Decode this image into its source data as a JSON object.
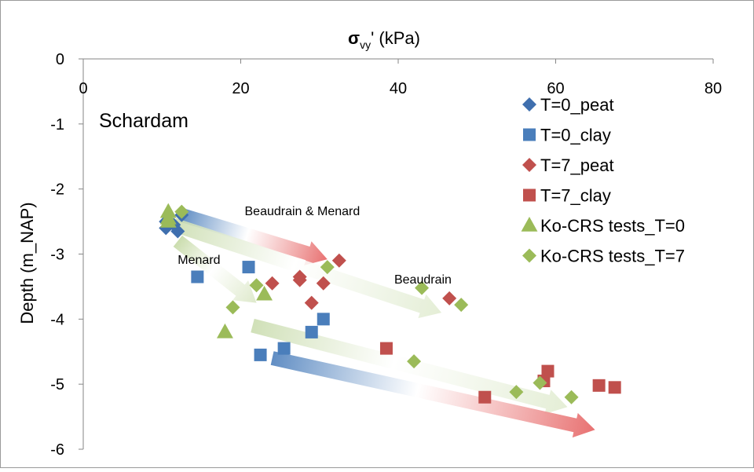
{
  "chart_data": {
    "type": "scatter",
    "title": "",
    "xlabel_main": "σ",
    "xlabel_sub": "vy",
    "xlabel_rest": "' (kPa)",
    "ylabel": "Depth (m_NAP)",
    "xlim": [
      0,
      80
    ],
    "ylim": [
      -6,
      0
    ],
    "x_ticks": [
      0,
      20,
      40,
      60,
      80
    ],
    "y_ticks": [
      0,
      -1,
      -2,
      -3,
      -4,
      -5,
      -6
    ],
    "x_axis_position": "top",
    "grid": false,
    "legend_position": "right",
    "site_label": "Schardam",
    "series": [
      {
        "name": "T=0_peat",
        "marker": "diamond",
        "color": "#3F6FAE",
        "points": [
          [
            10.5,
            -2.5
          ],
          [
            11.5,
            -2.55
          ],
          [
            12.5,
            -2.4
          ],
          [
            10.5,
            -2.6
          ],
          [
            12,
            -2.65
          ]
        ]
      },
      {
        "name": "T=0_clay",
        "marker": "square",
        "color": "#4A7EBB",
        "points": [
          [
            14.5,
            -3.35
          ],
          [
            21,
            -3.2
          ],
          [
            29,
            -4.2
          ],
          [
            30.5,
            -4.0
          ],
          [
            22.5,
            -4.55
          ],
          [
            25.5,
            -4.45
          ]
        ]
      },
      {
        "name": "T=7_peat",
        "marker": "diamond",
        "color": "#C0504D",
        "points": [
          [
            24,
            -3.45
          ],
          [
            27.5,
            -3.35
          ],
          [
            27.5,
            -3.4
          ],
          [
            30.5,
            -3.45
          ],
          [
            29,
            -3.75
          ],
          [
            32.5,
            -3.1
          ],
          [
            46.5,
            -3.68
          ]
        ]
      },
      {
        "name": "T=7_clay",
        "marker": "square",
        "color": "#C0504D",
        "points": [
          [
            38.5,
            -4.45
          ],
          [
            51,
            -5.2
          ],
          [
            58.5,
            -4.95
          ],
          [
            59,
            -4.8
          ],
          [
            65.5,
            -5.02
          ],
          [
            67.5,
            -5.05
          ]
        ]
      },
      {
        "name": "Ko-CRS tests_T=0",
        "marker": "triangle",
        "color": "#9BBB59",
        "points": [
          [
            10.8,
            -2.35
          ],
          [
            10.8,
            -2.45
          ],
          [
            10.8,
            -2.5
          ],
          [
            23,
            -3.62
          ],
          [
            18,
            -4.2
          ]
        ]
      },
      {
        "name": "Ko-CRS tests_T=7",
        "marker": "diamond",
        "color": "#9BBB59",
        "points": [
          [
            12.5,
            -2.35
          ],
          [
            22,
            -3.48
          ],
          [
            19,
            -3.82
          ],
          [
            31,
            -3.2
          ],
          [
            43,
            -3.52
          ],
          [
            48,
            -3.78
          ],
          [
            42,
            -4.65
          ],
          [
            55,
            -5.12
          ],
          [
            58,
            -4.98
          ],
          [
            62,
            -5.2
          ]
        ]
      }
    ],
    "annotations": [
      {
        "text": "Beaudrain & Menard",
        "label_at": [
          20.5,
          -2.4
        ],
        "arrow_from": [
          12.5,
          -2.4
        ],
        "arrow_to": [
          31,
          -3.08
        ],
        "colors": [
          "#4F81BD",
          "#E76A6A"
        ]
      },
      {
        "text": "Menard",
        "label_at": [
          12,
          -3.15
        ],
        "arrow_from": [
          12,
          -2.8
        ],
        "arrow_to": [
          22,
          -3.75
        ],
        "colors": [
          "#C5D9A5",
          "#DCE8C8"
        ]
      },
      {
        "text": "Beaudrain",
        "label_at": [
          39.5,
          -3.45
        ],
        "arrow_from": [
          11.5,
          -2.55
        ],
        "arrow_to": [
          45.5,
          -3.9
        ],
        "colors": [
          "#CBDDB0",
          "#E3EDD4"
        ]
      },
      {
        "text": "",
        "label_at": [
          0,
          0
        ],
        "arrow_from": [
          21.5,
          -4.1
        ],
        "arrow_to": [
          61.5,
          -5.35
        ],
        "colors": [
          "#CBDDB0",
          "#E3EDD4"
        ]
      },
      {
        "text": "",
        "label_at": [
          0,
          0
        ],
        "arrow_from": [
          24,
          -4.6
        ],
        "arrow_to": [
          65,
          -5.7
        ],
        "colors": [
          "#4F81BD",
          "#E76A6A"
        ]
      }
    ]
  }
}
